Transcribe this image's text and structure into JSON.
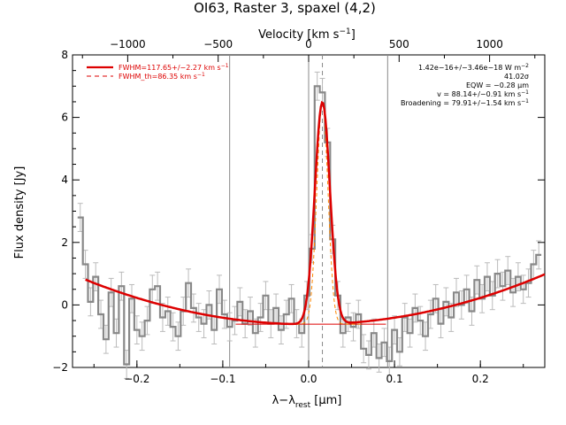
{
  "chart_data": {
    "type": "line",
    "title": "OI63, Raster 3, spaxel (4,2)",
    "xlabel": "λ−λ",
    "xlabel_sub": "rest",
    "xlabel_unit": " [μm]",
    "ylabel": "Flux density [Jy]",
    "top_axis_label": "Velocity [km s",
    "top_axis_label_sup": "−1",
    "top_axis_label_end": "]",
    "xlim": [
      -0.275,
      0.275
    ],
    "ylim": [
      -2,
      8
    ],
    "x_ticks": [
      -0.2,
      -0.1,
      0.0,
      0.1,
      0.2
    ],
    "x_tick_labels": [
      "−0.2",
      "−0.1",
      "0.0",
      "0.1",
      "0.2"
    ],
    "y_ticks": [
      -2,
      0,
      2,
      4,
      6,
      8
    ],
    "y_tick_labels": [
      "−2",
      "0",
      "2",
      "4",
      "6",
      "8"
    ],
    "top_ticks_kms": [
      -1000,
      -500,
      0,
      500,
      1000
    ],
    "top_tick_labels": [
      "−1000",
      "−500",
      "0",
      "500",
      "1000"
    ],
    "vertical_lines_x": [
      -0.092,
      0.0,
      0.092
    ],
    "line_center_x": 0.016,
    "legend": [
      {
        "label": "FWHM=117.65+/−2.27 km s",
        "sup": "−1",
        "style": "solid",
        "color": "#dd0000"
      },
      {
        "label": "FWHM_th=86.35 km s",
        "sup": "−1",
        "style": "dashed",
        "color": "#dd0000"
      }
    ],
    "annotations": [
      {
        "text": "1.42e−16+/−3.46e−18 W m",
        "sup": "−2"
      },
      {
        "text": "41.02σ",
        "sup": ""
      },
      {
        "text": "EQW = −0.28 μm",
        "sup": ""
      },
      {
        "text": "v = 88.14+/−0.91 km s",
        "sup": "−1"
      },
      {
        "text": "Broadening = 79.91+/−1.54 km s",
        "sup": "−1"
      }
    ],
    "series": [
      {
        "name": "data",
        "color": "#888888",
        "style": "step",
        "x": [
          -0.266,
          -0.26,
          -0.254,
          -0.248,
          -0.242,
          -0.236,
          -0.23,
          -0.224,
          -0.218,
          -0.212,
          -0.206,
          -0.2,
          -0.194,
          -0.188,
          -0.182,
          -0.176,
          -0.17,
          -0.164,
          -0.158,
          -0.152,
          -0.146,
          -0.14,
          -0.134,
          -0.128,
          -0.122,
          -0.116,
          -0.11,
          -0.104,
          -0.098,
          -0.092,
          -0.086,
          -0.08,
          -0.074,
          -0.068,
          -0.062,
          -0.056,
          -0.05,
          -0.044,
          -0.038,
          -0.032,
          -0.026,
          -0.02,
          -0.014,
          -0.008,
          -0.002,
          0.004,
          0.01,
          0.016,
          0.022,
          0.028,
          0.034,
          0.04,
          0.046,
          0.052,
          0.058,
          0.064,
          0.07,
          0.076,
          0.082,
          0.088,
          0.094,
          0.1,
          0.106,
          0.112,
          0.118,
          0.124,
          0.13,
          0.136,
          0.142,
          0.148,
          0.154,
          0.16,
          0.166,
          0.172,
          0.178,
          0.184,
          0.19,
          0.196,
          0.202,
          0.208,
          0.214,
          0.22,
          0.226,
          0.232,
          0.238,
          0.244,
          0.25,
          0.256,
          0.262,
          0.268
        ],
        "y": [
          2.8,
          1.3,
          0.1,
          0.9,
          -0.3,
          -1.1,
          0.4,
          -0.9,
          0.6,
          -1.9,
          0.2,
          -0.8,
          -1.0,
          -0.5,
          0.5,
          0.6,
          -0.4,
          -0.2,
          -0.7,
          -1.0,
          -0.2,
          0.7,
          -0.1,
          -0.4,
          -0.6,
          0.0,
          -0.8,
          0.5,
          -0.3,
          -0.7,
          -0.5,
          0.1,
          -0.6,
          -0.2,
          -0.9,
          -0.4,
          0.3,
          -0.6,
          -0.1,
          -0.8,
          -0.3,
          0.2,
          -0.6,
          -0.9,
          0.3,
          1.8,
          7.0,
          6.8,
          5.2,
          2.1,
          0.3,
          -0.9,
          -0.4,
          -0.7,
          -0.3,
          -1.4,
          -1.6,
          -0.9,
          -1.7,
          -1.2,
          -1.8,
          -0.8,
          -1.5,
          -0.4,
          -0.9,
          -0.1,
          -0.5,
          -1.0,
          -0.3,
          0.2,
          -0.6,
          0.1,
          -0.4,
          0.4,
          0.0,
          0.5,
          -0.2,
          0.8,
          0.2,
          0.9,
          0.3,
          1.0,
          0.6,
          1.1,
          0.4,
          0.9,
          0.5,
          0.7,
          1.3,
          1.6
        ],
        "error": 0.45
      },
      {
        "name": "fit",
        "color": "#dd0000",
        "style": "solid",
        "continuum": {
          "a": -0.62,
          "b": 0.16,
          "c": 11.5
        },
        "gauss": {
          "center": 0.016,
          "amplitude": 7.1,
          "sigma": 0.0088
        }
      },
      {
        "name": "thermal",
        "color": "#ff8800",
        "style": "dashed",
        "gauss": {
          "center": 0.016,
          "amplitude": 7.1,
          "sigma": 0.0065
        }
      }
    ]
  }
}
